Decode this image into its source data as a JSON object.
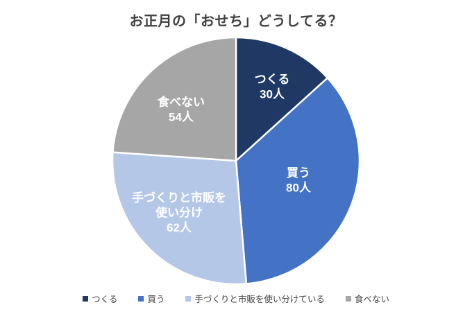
{
  "chart_data": {
    "type": "pie",
    "title": "お正月の「おせち」どうしてる？",
    "unit": "人",
    "total": 226,
    "direction": "clockwise",
    "start_angle": "top",
    "legend_position": "bottom",
    "grid": false,
    "categories": [
      "つくる",
      "買う",
      "手づくりと市販を使い分けている",
      "食べない"
    ],
    "values": [
      30,
      80,
      62,
      54
    ],
    "slices": [
      {
        "name": "つくる",
        "value": 30,
        "label_lines": [
          "つくる",
          "30人"
        ],
        "legend_label": "つくる",
        "color": "#1F3864"
      },
      {
        "name": "買う",
        "value": 80,
        "label_lines": [
          "買う",
          "80人"
        ],
        "legend_label": "買う",
        "color": "#4472C4"
      },
      {
        "name": "手づくりと市販を使い分けている",
        "value": 62,
        "label_lines": [
          "手づくりと市販を",
          "使い分け",
          "62人"
        ],
        "legend_label": "手づくりと市販を使い分けている",
        "color": "#B4C7E7"
      },
      {
        "name": "食べない",
        "value": 54,
        "label_lines": [
          "食べない",
          "54人"
        ],
        "legend_label": "食べない",
        "color": "#A6A6A6"
      }
    ],
    "slice_label_color": "#FFFFFF",
    "slice_stroke_color": "#FFFFFF",
    "title_color": "#404040",
    "legend_text_color": "#404040",
    "background_color": "#FFFFFF"
  }
}
